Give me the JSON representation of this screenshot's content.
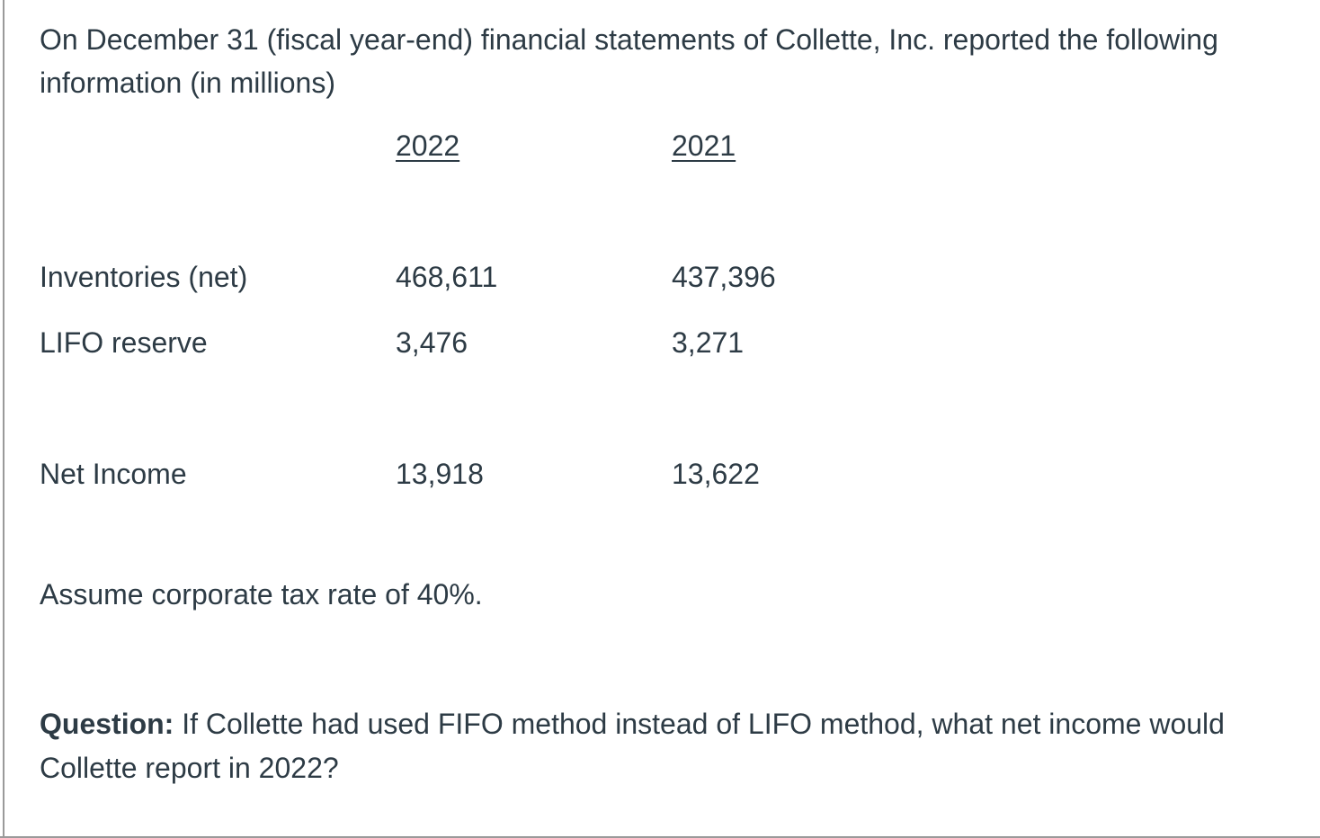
{
  "content": {
    "intro": "On December 31 (fiscal year-end) financial statements of Collette, Inc. reported the following information (in millions)",
    "table": {
      "col_2022": "2022",
      "col_2021": "2021",
      "rows": [
        {
          "label": "Inventories (net)",
          "y2022": "468,611",
          "y2021": "437,396"
        },
        {
          "label": "LIFO reserve",
          "y2022": "3,476",
          "y2021": "3,271"
        },
        {
          "label": "Net Income",
          "y2022": "13,918",
          "y2021": "13,622"
        }
      ]
    },
    "assumption": "Assume corporate tax rate of 40%.",
    "question_label": "Question:",
    "question_text": " If Collette had used FIFO method instead of LIFO method, what net income would Collette report in 2022?"
  },
  "colors": {
    "text": "#2D3B45",
    "border": "#9a9a9a",
    "background": "#ffffff"
  }
}
